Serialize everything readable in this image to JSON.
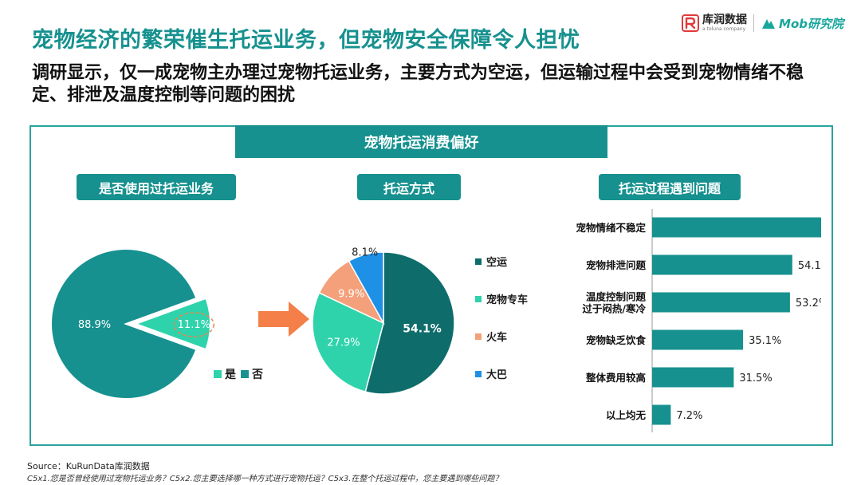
{
  "title": "宠物经济的繁荣催生托运业务，但宠物安全保障令人担忧",
  "subtitle": "调研显示，仅一成宠物主办理过宠物托运业务，主要方式为空运，但运输过程中会受到宠物情绪不稳定、排泄及温度控制等问题的困扰",
  "logos": {
    "kurun_cn": "库润数据",
    "kurun_en": "a toluna company",
    "mob": "Mob研究院"
  },
  "panel_title": "宠物托运消费偏好",
  "colors": {
    "dark_teal": "#0e6d6b",
    "teal": "#16918f",
    "mint": "#2fd3ab",
    "salmon": "#f4a07b",
    "blue": "#1e90e6",
    "arrow": "#f47f48"
  },
  "chart_data": [
    {
      "type": "pie",
      "title": "是否使用过托运业务",
      "slices": [
        {
          "label": "是",
          "value": 11.1,
          "value_label": "11.1%",
          "color": "#2fd3ab",
          "exploded": true
        },
        {
          "label": "否",
          "value": 88.9,
          "value_label": "88.9%",
          "color": "#16918f",
          "exploded": false
        }
      ],
      "legend": [
        "是",
        "否"
      ]
    },
    {
      "type": "pie",
      "title": "托运方式",
      "slices": [
        {
          "label": "空运",
          "value": 54.1,
          "value_label": "54.1%",
          "color": "#0e6d6b"
        },
        {
          "label": "宠物专车",
          "value": 27.9,
          "value_label": "27.9%",
          "color": "#2fd3ab"
        },
        {
          "label": "火车",
          "value": 9.9,
          "value_label": "9.9%",
          "color": "#f4a07b"
        },
        {
          "label": "大巴",
          "value": 8.1,
          "value_label": "8.1%",
          "color": "#1e90e6"
        }
      ],
      "legend": [
        "空运",
        "宠物专车",
        "火车",
        "大巴"
      ]
    },
    {
      "type": "bar",
      "orientation": "horizontal",
      "title": "托运过程遇到问题",
      "categories": [
        [
          "宠物情绪不稳定"
        ],
        [
          "宠物排泄问题"
        ],
        [
          "温度控制问题",
          "过于闷热/寒冷"
        ],
        [
          "宠物缺乏饮食"
        ],
        [
          "整体费用较高"
        ],
        [
          "以上均无"
        ]
      ],
      "values": [
        66.7,
        54.1,
        53.2,
        35.1,
        31.5,
        7.2
      ],
      "value_labels": [
        "66.7%",
        "54.1%",
        "53.2%",
        "35.1%",
        "31.5%",
        "7.2%"
      ],
      "xlim": [
        0,
        100
      ],
      "color": "#16918f"
    }
  ],
  "source": "Source：KuRunData库润数据",
  "note": "C5x1.您是否曾经使用过宠物托运业务？C5x2.您主要选择哪一种方式进行宠物托运？C5x3.在整个托运过程中，您主要遇到哪些问题？"
}
